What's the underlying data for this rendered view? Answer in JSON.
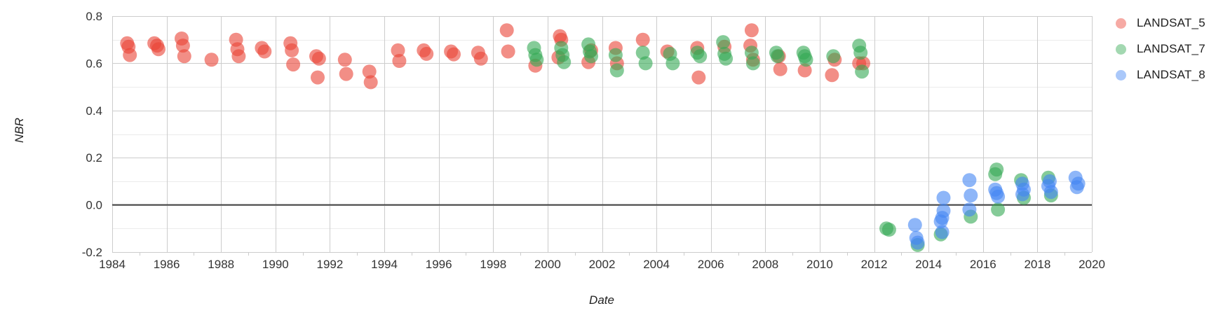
{
  "chart_data": {
    "type": "scatter",
    "title": "",
    "xlabel": "Date",
    "ylabel": "NBR",
    "xlim": [
      1984,
      2020
    ],
    "ylim": [
      -0.2,
      0.8
    ],
    "grid": true,
    "legend_position": "right-top",
    "x_tick_interval": 2,
    "x_tick_labels": [
      "1984",
      "1986",
      "1988",
      "1990",
      "1992",
      "1994",
      "1996",
      "1998",
      "2000",
      "2002",
      "2004",
      "2006",
      "2008",
      "2010",
      "2012",
      "2014",
      "2016",
      "2018",
      "2020"
    ],
    "y_tick_values": [
      0.8,
      0.6,
      0.4,
      0.2,
      0.0,
      -0.2
    ],
    "y_tick_labels": [
      "0.8",
      "0.6",
      "0.4",
      "0.2",
      "0.0",
      "-0.2"
    ],
    "y_minor_interval": 0.1,
    "point_radius": 10,
    "point_opacity": 0.6,
    "legend_swatch_opacity": 0.45,
    "series": [
      {
        "name": "LANDSAT_5",
        "color": "#EA4335",
        "points": [
          [
            1984.55,
            0.685
          ],
          [
            1984.6,
            0.67
          ],
          [
            1984.65,
            0.635
          ],
          [
            1985.55,
            0.685
          ],
          [
            1985.65,
            0.675
          ],
          [
            1985.7,
            0.66
          ],
          [
            1986.55,
            0.705
          ],
          [
            1986.6,
            0.675
          ],
          [
            1986.65,
            0.63
          ],
          [
            1987.65,
            0.615
          ],
          [
            1988.55,
            0.7
          ],
          [
            1988.6,
            0.66
          ],
          [
            1988.65,
            0.63
          ],
          [
            1989.5,
            0.665
          ],
          [
            1989.6,
            0.65
          ],
          [
            1990.55,
            0.685
          ],
          [
            1990.6,
            0.655
          ],
          [
            1990.65,
            0.595
          ],
          [
            1991.5,
            0.63
          ],
          [
            1991.6,
            0.62
          ],
          [
            1991.55,
            0.54
          ],
          [
            1992.55,
            0.615
          ],
          [
            1992.6,
            0.555
          ],
          [
            1993.45,
            0.565
          ],
          [
            1993.5,
            0.52
          ],
          [
            1994.5,
            0.655
          ],
          [
            1994.55,
            0.61
          ],
          [
            1995.45,
            0.655
          ],
          [
            1995.55,
            0.64
          ],
          [
            1996.45,
            0.65
          ],
          [
            1996.55,
            0.638
          ],
          [
            1997.45,
            0.645
          ],
          [
            1997.55,
            0.62
          ],
          [
            1998.5,
            0.74
          ],
          [
            1998.55,
            0.65
          ],
          [
            1999.55,
            0.59
          ],
          [
            2000.4,
            0.625
          ],
          [
            2000.45,
            0.715
          ],
          [
            2000.5,
            0.7
          ],
          [
            2001.5,
            0.605
          ],
          [
            2001.6,
            0.655
          ],
          [
            2002.5,
            0.665
          ],
          [
            2002.55,
            0.6
          ],
          [
            2003.5,
            0.7
          ],
          [
            2004.4,
            0.65
          ],
          [
            2005.5,
            0.665
          ],
          [
            2005.55,
            0.54
          ],
          [
            2006.5,
            0.67
          ],
          [
            2007.45,
            0.675
          ],
          [
            2007.5,
            0.74
          ],
          [
            2007.55,
            0.615
          ],
          [
            2008.5,
            0.63
          ],
          [
            2008.55,
            0.575
          ],
          [
            2009.45,
            0.57
          ],
          [
            2010.45,
            0.55
          ],
          [
            2010.55,
            0.615
          ],
          [
            2011.45,
            0.6
          ],
          [
            2011.6,
            0.6
          ]
        ]
      },
      {
        "name": "LANDSAT_7",
        "color": "#34A853",
        "points": [
          [
            1999.5,
            0.665
          ],
          [
            1999.55,
            0.635
          ],
          [
            1999.6,
            0.615
          ],
          [
            2000.5,
            0.665
          ],
          [
            2000.55,
            0.635
          ],
          [
            2000.6,
            0.605
          ],
          [
            2001.5,
            0.68
          ],
          [
            2001.55,
            0.65
          ],
          [
            2001.6,
            0.63
          ],
          [
            2002.5,
            0.635
          ],
          [
            2002.55,
            0.57
          ],
          [
            2003.5,
            0.645
          ],
          [
            2003.6,
            0.6
          ],
          [
            2004.5,
            0.64
          ],
          [
            2004.6,
            0.6
          ],
          [
            2005.5,
            0.645
          ],
          [
            2005.6,
            0.63
          ],
          [
            2006.45,
            0.69
          ],
          [
            2006.5,
            0.64
          ],
          [
            2006.55,
            0.62
          ],
          [
            2007.5,
            0.645
          ],
          [
            2007.55,
            0.6
          ],
          [
            2008.4,
            0.645
          ],
          [
            2008.45,
            0.63
          ],
          [
            2009.4,
            0.645
          ],
          [
            2009.45,
            0.63
          ],
          [
            2009.5,
            0.615
          ],
          [
            2010.5,
            0.63
          ],
          [
            2011.45,
            0.675
          ],
          [
            2011.5,
            0.645
          ],
          [
            2011.55,
            0.565
          ],
          [
            2012.45,
            -0.1
          ],
          [
            2012.55,
            -0.105
          ],
          [
            2013.6,
            -0.17
          ],
          [
            2014.45,
            -0.125
          ],
          [
            2015.55,
            -0.05
          ],
          [
            2016.45,
            0.13
          ],
          [
            2016.5,
            0.15
          ],
          [
            2016.55,
            -0.02
          ],
          [
            2017.4,
            0.105
          ],
          [
            2017.5,
            0.03
          ],
          [
            2018.4,
            0.115
          ],
          [
            2018.5,
            0.04
          ]
        ]
      },
      {
        "name": "LANDSAT_8",
        "color": "#4285F4",
        "points": [
          [
            2013.5,
            -0.085
          ],
          [
            2013.55,
            -0.14
          ],
          [
            2013.6,
            -0.16
          ],
          [
            2014.55,
            0.03
          ],
          [
            2014.55,
            -0.025
          ],
          [
            2014.5,
            -0.055
          ],
          [
            2014.45,
            -0.07
          ],
          [
            2014.5,
            -0.115
          ],
          [
            2015.5,
            0.105
          ],
          [
            2015.55,
            0.04
          ],
          [
            2015.5,
            -0.02
          ],
          [
            2016.45,
            0.065
          ],
          [
            2016.5,
            0.05
          ],
          [
            2016.55,
            0.035
          ],
          [
            2017.45,
            0.09
          ],
          [
            2017.5,
            0.065
          ],
          [
            2017.45,
            0.045
          ],
          [
            2018.45,
            0.1
          ],
          [
            2018.4,
            0.08
          ],
          [
            2018.5,
            0.055
          ],
          [
            2019.4,
            0.115
          ],
          [
            2019.45,
            0.075
          ],
          [
            2019.5,
            0.09
          ]
        ]
      }
    ]
  },
  "legend": {
    "items": [
      {
        "label": "LANDSAT_5",
        "color": "#EA4335"
      },
      {
        "label": "LANDSAT_7",
        "color": "#34A853"
      },
      {
        "label": "LANDSAT_8",
        "color": "#4285F4"
      }
    ]
  },
  "colors": {
    "background": "#ffffff",
    "grid_major": "#cccccc",
    "grid_minor": "#ebebeb",
    "zero_line": "#424242",
    "tick_text": "#333333",
    "axis_title_text": "#222222"
  }
}
